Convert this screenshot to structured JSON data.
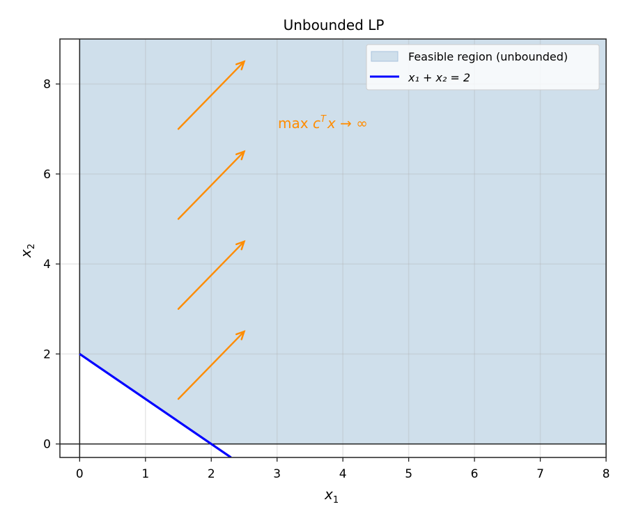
{
  "chart_data": {
    "type": "area",
    "title": "Unbounded LP",
    "xlabel": "x1",
    "ylabel": "x2",
    "xlim": [
      -0.3,
      8
    ],
    "ylim": [
      -0.3,
      9
    ],
    "xticks": [
      0,
      1,
      2,
      3,
      4,
      5,
      6,
      7,
      8
    ],
    "yticks": [
      0,
      2,
      4,
      6,
      8
    ],
    "grid": true,
    "legend_position": "upper right",
    "series": [
      {
        "name": "Feasible region (unbounded)",
        "kind": "fill",
        "color": "#cfdfeb",
        "polygon": [
          [
            0,
            2
          ],
          [
            0,
            9
          ],
          [
            8,
            9
          ],
          [
            8,
            0
          ],
          [
            2,
            0
          ]
        ]
      },
      {
        "name": "x1 + x2 = 2",
        "kind": "line",
        "color": "#0000ff",
        "x": [
          0,
          2.3
        ],
        "y": [
          2,
          -0.3
        ]
      }
    ],
    "arrows": [
      {
        "from": [
          1.5,
          1
        ],
        "to": [
          2.5,
          2.5
        ]
      },
      {
        "from": [
          1.5,
          3
        ],
        "to": [
          2.5,
          4.5
        ]
      },
      {
        "from": [
          1.5,
          5
        ],
        "to": [
          2.5,
          6.5
        ]
      },
      {
        "from": [
          1.5,
          7
        ],
        "to": [
          2.5,
          8.5
        ]
      }
    ],
    "arrow_color": "#ff8c00",
    "annotations": [
      {
        "text": "max c^T x → ∞",
        "x": 3.0,
        "y": 7.1,
        "color": "#ff8c00"
      }
    ],
    "axis_lines": {
      "x0": true,
      "y0": true
    }
  },
  "labels": {
    "title": "Unbounded LP",
    "xlabel_main": "x",
    "xlabel_sub": "1",
    "ylabel_main": "x",
    "ylabel_sub": "2",
    "legend_fill": "Feasible region (unbounded)",
    "legend_line": "x₁ + x₂ = 2",
    "annotation_prefix": "max ",
    "annotation_c": "c",
    "annotation_sup": "T",
    "annotation_x": "x",
    "annotation_suffix": " → ∞"
  }
}
